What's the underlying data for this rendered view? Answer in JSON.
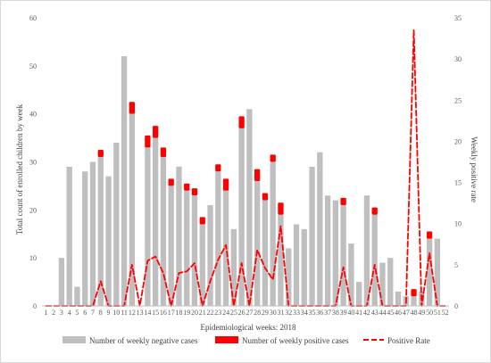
{
  "chart_data": {
    "type": "bar",
    "xlabel": "Epidemiological weeks: 2018",
    "ylabel_left": "Total count of enrolled children by week",
    "ylabel_right": "Weekly positive rate",
    "ylim_left": [
      0,
      60
    ],
    "yticks_left": [
      "0",
      "10",
      "20",
      "30",
      "40",
      "50",
      "60"
    ],
    "ylim_right": [
      0,
      35
    ],
    "yticks_right": [
      "0",
      "5",
      "10",
      "15",
      "20",
      "25",
      "30",
      "35"
    ],
    "categories": [
      "1",
      "2",
      "3",
      "4",
      "5",
      "6",
      "7",
      "8",
      "9",
      "10",
      "11",
      "12",
      "13",
      "14",
      "15",
      "16",
      "17",
      "18",
      "19",
      "20",
      "21",
      "22",
      "23",
      "24",
      "25",
      "26",
      "27",
      "28",
      "29",
      "30",
      "31",
      "32",
      "33",
      "34",
      "35",
      "36",
      "37",
      "38",
      "39",
      "40",
      "41",
      "42",
      "43",
      "44",
      "45",
      "46",
      "47",
      "48",
      "49",
      "50",
      "51",
      "52"
    ],
    "series": [
      {
        "name": "Number of weekly negative cases",
        "kind": "stacked-bar",
        "color": "#bfbfbf",
        "values": [
          0,
          0,
          10,
          29,
          4,
          28,
          30,
          31,
          27,
          34,
          52,
          40,
          0,
          33,
          35,
          31,
          25,
          29,
          24,
          23,
          17,
          21,
          28,
          24,
          16,
          37,
          41,
          26,
          22,
          30,
          19,
          12,
          17,
          16,
          29,
          32,
          23,
          22,
          21,
          13,
          5,
          23,
          19,
          9,
          10,
          3,
          2,
          2,
          3,
          14,
          14,
          0
        ]
      },
      {
        "name": "Number of weekly positive cases",
        "kind": "stacked-bar",
        "color": "#ff0000",
        "values": [
          0,
          0,
          0,
          0,
          0,
          0,
          0,
          1.5,
          0,
          0,
          0,
          2.5,
          0,
          2.5,
          2.5,
          2,
          1.5,
          0,
          1.5,
          1.5,
          1.5,
          0,
          1.5,
          2.5,
          0,
          2.5,
          0,
          2.5,
          1.5,
          1.5,
          2.5,
          0,
          0,
          0,
          0,
          0,
          0,
          0,
          1.5,
          0,
          0,
          0,
          1.5,
          0,
          0,
          0,
          0,
          1.5,
          0,
          1.5,
          0,
          0
        ]
      },
      {
        "name": "Positive Rate",
        "kind": "line",
        "axis": "right",
        "color": "#ff0000",
        "values": [
          0,
          0,
          0,
          0,
          0,
          0,
          0,
          3,
          0,
          0,
          0,
          5,
          0,
          5.5,
          6,
          4,
          0,
          4,
          4.2,
          5.2,
          0,
          3,
          5.6,
          7.4,
          0,
          5.2,
          0,
          6.8,
          4.6,
          3.2,
          9.7,
          0,
          0,
          0,
          0,
          0,
          0,
          0,
          4.7,
          0,
          0,
          0,
          5,
          0,
          0,
          0,
          0,
          33.5,
          0,
          6.4,
          0,
          0
        ]
      }
    ],
    "legend": {
      "position": "bottom",
      "items": [
        {
          "label": "Number of weekly negative cases",
          "swatch": "bar",
          "color": "#bfbfbf"
        },
        {
          "label": "Number of weekly positive cases",
          "swatch": "bar",
          "color": "#ff0000"
        },
        {
          "label": "Positive Rate",
          "swatch": "dashed-line",
          "color": "#ff0000"
        }
      ]
    },
    "grid": false
  }
}
